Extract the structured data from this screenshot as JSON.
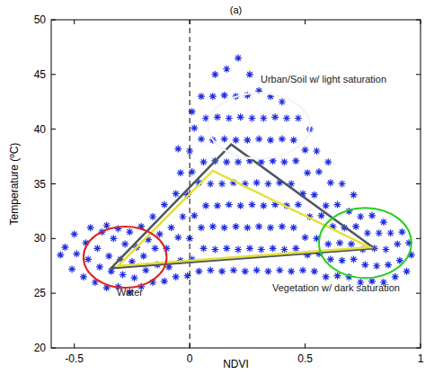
{
  "chart_data": {
    "type": "scatter",
    "title": "(a)",
    "x_label": "NDVI",
    "y_label": "Temperature (ºC)",
    "xlim": [
      -0.6,
      1
    ],
    "ylim": [
      20,
      50
    ],
    "xticks": [
      -0.5,
      0,
      0.5,
      1
    ],
    "yticks": [
      20,
      25,
      30,
      35,
      40,
      45,
      50
    ],
    "grid": false,
    "color": "#1f2ee0",
    "marker": "asterisk",
    "x": [
      -0.56,
      -0.54,
      -0.51,
      -0.49,
      -0.5,
      -0.46,
      -0.44,
      -0.45,
      -0.43,
      -0.41,
      -0.39,
      -0.4,
      -0.38,
      -0.36,
      -0.34,
      -0.35,
      -0.33,
      -0.36,
      -0.31,
      -0.29,
      -0.3,
      -0.28,
      -0.31,
      -0.26,
      -0.24,
      -0.25,
      -0.23,
      -0.26,
      -0.21,
      -0.19,
      -0.2,
      -0.18,
      -0.21,
      -0.16,
      -0.14,
      -0.15,
      -0.13,
      -0.16,
      -0.11,
      -0.09,
      -0.1,
      -0.08,
      -0.11,
      -0.06,
      -0.04,
      -0.05,
      -0.03,
      -0.06,
      -0.04,
      -0.05,
      -0.01,
      0.01,
      0,
      0.02,
      -0.01,
      0.01,
      0,
      0.02,
      0.01,
      0.04,
      0.06,
      0.05,
      0.07,
      0.04,
      0.06,
      0.05,
      0.07,
      0.05,
      0.09,
      0.11,
      0.1,
      0.12,
      0.09,
      0.11,
      0.1,
      0.12,
      0.1,
      0.11,
      0.14,
      0.16,
      0.15,
      0.17,
      0.14,
      0.16,
      0.15,
      0.17,
      0.15,
      0.16,
      0.19,
      0.21,
      0.2,
      0.22,
      0.19,
      0.21,
      0.2,
      0.22,
      0.2,
      0.21,
      0.24,
      0.26,
      0.25,
      0.27,
      0.24,
      0.26,
      0.25,
      0.27,
      0.25,
      0.26,
      0.29,
      0.31,
      0.3,
      0.32,
      0.29,
      0.31,
      0.3,
      0.32,
      0.3,
      0.34,
      0.36,
      0.35,
      0.37,
      0.34,
      0.36,
      0.35,
      0.37,
      0.35,
      0.39,
      0.41,
      0.4,
      0.42,
      0.39,
      0.41,
      0.4,
      0.42,
      0.4,
      0.44,
      0.46,
      0.45,
      0.47,
      0.44,
      0.46,
      0.45,
      0.47,
      0.49,
      0.51,
      0.5,
      0.52,
      0.49,
      0.51,
      0.5,
      0.52,
      0.54,
      0.56,
      0.55,
      0.57,
      0.54,
      0.56,
      0.55,
      0.59,
      0.61,
      0.6,
      0.62,
      0.59,
      0.61,
      0.6,
      0.64,
      0.66,
      0.65,
      0.67,
      0.64,
      0.66,
      0.69,
      0.71,
      0.7,
      0.72,
      0.69,
      0.71,
      0.74,
      0.76,
      0.75,
      0.77,
      0.74,
      0.79,
      0.81,
      0.8,
      0.82,
      0.79,
      0.84,
      0.86,
      0.85,
      0.87,
      0.84,
      0.89,
      0.91,
      0.9,
      0.92,
      0.94,
      0.96,
      0.95
    ],
    "values": [
      28.5,
      29.2,
      27.2,
      28.6,
      30.4,
      26.5,
      28.1,
      29.6,
      31,
      26,
      27.4,
      29.1,
      30.6,
      25.5,
      27,
      28.4,
      30,
      31.2,
      25.6,
      26.7,
      28.1,
      29.5,
      30.9,
      25.1,
      26.4,
      27.9,
      29.2,
      30.6,
      25.6,
      27.1,
      28.4,
      29.9,
      31.1,
      26,
      27.6,
      29.1,
      30.4,
      32,
      26.1,
      27.4,
      29.1,
      31,
      33.1,
      26.5,
      28,
      30.1,
      32,
      34.1,
      36,
      38.2,
      26.6,
      28.1,
      30,
      32.1,
      34,
      36.1,
      38,
      40.1,
      41.6,
      27,
      29.1,
      31,
      33,
      35.1,
      37,
      39.1,
      41,
      43,
      27.1,
      29,
      31.1,
      33,
      35,
      37.1,
      39,
      41.1,
      43,
      45,
      27,
      29.1,
      31,
      33.1,
      35,
      37,
      39.1,
      41,
      43.1,
      45.5,
      27.1,
      29,
      31.1,
      33,
      35.1,
      37,
      39,
      41.1,
      43,
      46.5,
      27,
      29.1,
      31,
      33.1,
      35,
      37.1,
      39,
      41,
      43.1,
      45,
      27.1,
      29,
      31.1,
      33,
      35.1,
      37,
      39.1,
      41,
      43.5,
      27,
      29.1,
      31,
      33.1,
      35,
      37.1,
      39,
      41.1,
      43,
      27.1,
      29,
      31.1,
      33,
      35.1,
      37,
      39.1,
      41,
      42.5,
      27,
      29.1,
      31,
      33.1,
      35,
      37.1,
      39,
      41,
      27.1,
      28.5,
      30.1,
      32,
      34.1,
      36,
      38.1,
      40,
      27,
      28.6,
      30,
      32.1,
      34,
      36.1,
      38,
      26.5,
      28.1,
      29.5,
      31.1,
      33,
      35.1,
      37,
      26.6,
      28,
      29.6,
      31,
      33.1,
      35,
      26.5,
      28.1,
      29.5,
      31.1,
      32.5,
      34,
      26,
      27.6,
      29,
      30.5,
      32,
      26.1,
      27.5,
      29.1,
      30.5,
      32.1,
      26,
      27.6,
      29,
      30.5,
      31.5,
      26.5,
      28,
      29.5,
      30.6,
      27,
      28.5,
      29.6
    ],
    "reference_line": {
      "x": 0,
      "line_style": "dashed",
      "color": "#000000"
    },
    "triangles": [
      {
        "color": "#4b5663",
        "x": [
          -0.34,
          0.18,
          0.8
        ],
        "y": [
          27.3,
          38.6,
          29.1
        ]
      },
      {
        "color": "#e6df3a",
        "x": [
          -0.31,
          0.1,
          0.78
        ],
        "y": [
          27.5,
          36.2,
          29.2
        ]
      }
    ],
    "regions": [
      {
        "color": "#e02020",
        "cx": -0.28,
        "cy": 28.3,
        "rx": 0.18,
        "ry": 2.8
      },
      {
        "color": "#f4f4f4",
        "cx": 0.3,
        "cy": 40.3,
        "rx": 0.22,
        "ry": 3
      },
      {
        "color": "#22d022",
        "cx": 0.76,
        "cy": 29.6,
        "rx": 0.2,
        "ry": 3.2
      }
    ],
    "annotations": [
      "Urban/Soil w/ light saturation",
      "Water",
      "Vegetation w/ dark saturation"
    ]
  }
}
